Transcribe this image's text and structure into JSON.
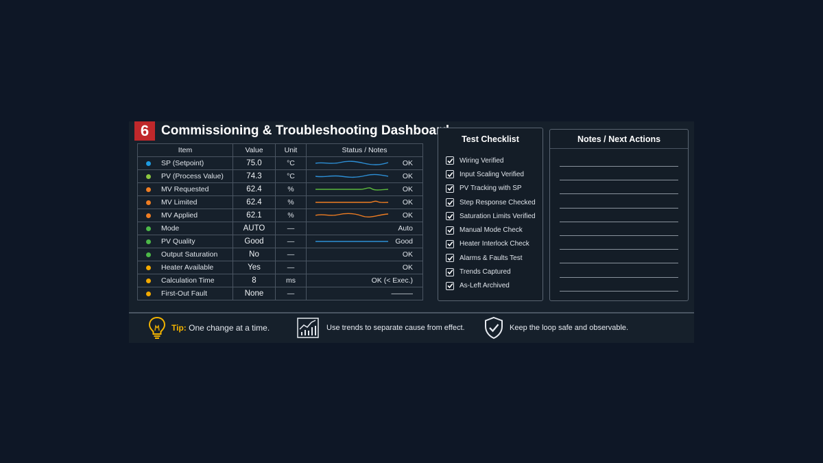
{
  "title": {
    "number": "6",
    "text": "Commissioning & Troubleshooting Dashboard"
  },
  "table": {
    "headers": [
      "Item",
      "Value",
      "Unit",
      "Status / Notes"
    ],
    "rows": [
      {
        "item": "SP (Setpoint)",
        "value": "75.0",
        "unit": "°C",
        "status": "OK",
        "dot": "#1e9be0",
        "trend": "#2d8fd6"
      },
      {
        "item": "PV (Process Value)",
        "value": "74.3",
        "unit": "°C",
        "status": "OK",
        "dot": "#8cc63f",
        "trend": "#2d8fd6"
      },
      {
        "item": "MV Requested",
        "value": "62.4",
        "unit": "%",
        "status": "OK",
        "dot": "#ef7d22",
        "trend": "#5cb83c"
      },
      {
        "item": "MV Limited",
        "value": "62.4",
        "unit": "%",
        "status": "OK",
        "dot": "#ef7d22",
        "trend": "#ef7d22"
      },
      {
        "item": "MV Applied",
        "value": "62.1",
        "unit": "%",
        "status": "OK",
        "dot": "#ef7d22",
        "trend": "#ef7d22"
      },
      {
        "item": "Mode",
        "value": "AUTO",
        "unit": "—",
        "status": "Auto",
        "dot": "#4cb848",
        "trend": ""
      },
      {
        "item": "PV Quality",
        "value": "Good",
        "unit": "—",
        "status": "Good",
        "dot": "#4cb848",
        "trend": "#2d8fd6"
      },
      {
        "item": "Output Saturation",
        "value": "No",
        "unit": "—",
        "status": "OK",
        "dot": "#4cb848",
        "trend": ""
      },
      {
        "item": "Heater Available",
        "value": "Yes",
        "unit": "—",
        "status": "OK",
        "dot": "#f2a900",
        "trend": ""
      },
      {
        "item": "Calculation Time",
        "value": "8",
        "unit": "ms",
        "status": "OK (< Exec.)",
        "dot": "#f2a900",
        "trend": ""
      },
      {
        "item": "First-Out Fault",
        "value": "None",
        "unit": "—",
        "status": "———",
        "dot": "#f2a900",
        "trend": ""
      }
    ]
  },
  "checklist": {
    "title": "Test Checklist",
    "items": [
      "Wiring Verified",
      "Input Scaling Verified",
      "PV Tracking with SP",
      "Step Response Checked",
      "Saturation Limits Verified",
      "Manual Mode Check",
      "Heater Interlock Check",
      "Alarms & Faults Test",
      "Trends Captured",
      "As-Left Archived"
    ]
  },
  "notes": {
    "title": "Notes / Next Actions"
  },
  "footer": {
    "tip_label": "Tip:",
    "tip_text": " One change at a time.",
    "trend_text": "Use trends to separate cause from effect.",
    "safety_text": "Keep the loop safe and observable."
  },
  "icons": {
    "tip": "lightbulb-icon",
    "trend": "trend-chart-icon",
    "safety": "shield-check-icon",
    "checkbox": "checkbox-checked-icon"
  },
  "colors": {
    "background": "#0e1726",
    "accent_red": "#c0282b",
    "tip_yellow": "#f4b400"
  }
}
